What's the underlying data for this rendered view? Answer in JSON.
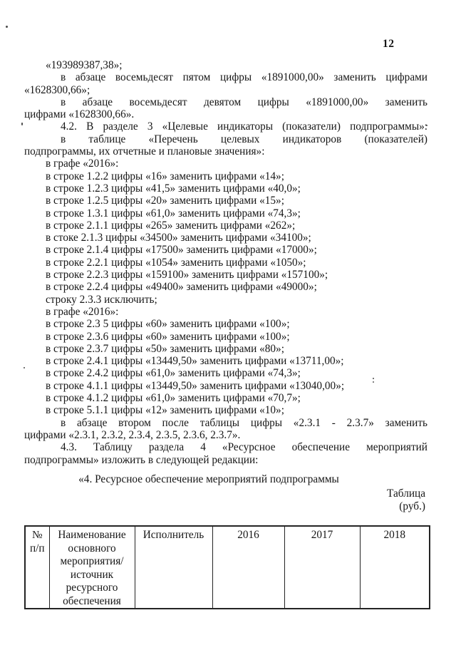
{
  "page": {
    "number": "12"
  },
  "document": {
    "lines": [
      {
        "style": "i",
        "text": "«193989387,38»;"
      },
      {
        "style": "pj",
        "text": "в абзаце восемьдесят пятом цифры «1891000,00» заменить цифрами"
      },
      {
        "style": "m",
        "text": "«1628300,66»;"
      },
      {
        "style": "pj",
        "text": "в абзаце восемьдесят девятом цифры «1891000,00» заменить"
      },
      {
        "style": "m",
        "text": "цифрами «1628300,66»."
      },
      {
        "style": "pj",
        "text": "4.2. В разделе 3 «Целевые индикаторы (показатели) подпрограммы»:"
      },
      {
        "style": "pj",
        "text": "в таблице «Перечень целевых индикаторов (показателей)"
      },
      {
        "style": "m",
        "text": "подпрограммы, их отчетные и плановые значения»:"
      },
      {
        "style": "i",
        "text": "в графе «2016»:"
      },
      {
        "style": "i",
        "text": "в строке 1.2.2 цифры «16» заменить цифрами «14»;"
      },
      {
        "style": "i",
        "text": "в строке 1.2.3 цифры «41,5» заменить цифрами «40,0»;"
      },
      {
        "style": "i",
        "text": "в строке 1.2.5 цифры «20» заменить цифрами «15»;"
      },
      {
        "style": "i",
        "text": "в строке 1.3.1 цифры «61,0» заменить цифрами «74,3»;"
      },
      {
        "style": "i",
        "text": "в строке 2.1.1 цифры «265» заменить цифрами «262»;"
      },
      {
        "style": "i",
        "text": "в стоке 2.1.3 цифры «34500» заменить цифрами «34100»;"
      },
      {
        "style": "i",
        "text": "в строке 2.1.4 цифры «17500» заменить цифрами «17000»;"
      },
      {
        "style": "i",
        "text": "в строке 2.2.1 цифры «1054» заменить цифрами «1050»;"
      },
      {
        "style": "i",
        "text": "в строке 2.2.3 цифры «159100» заменить цифрами «157100»;"
      },
      {
        "style": "i",
        "text": "в строке 2.2.4 цифры «49400» заменить цифрами «49000»;"
      },
      {
        "style": "i",
        "text": "строку 2.3.3 исключить;"
      },
      {
        "style": "i",
        "text": "в графе «2016»:"
      },
      {
        "style": "i",
        "text": "в строке 2.3 5 цифры «60» заменить цифрами «100»;"
      },
      {
        "style": "i",
        "text": "в строке 2.3.6 цифры «60» заменить цифрами «100»;"
      },
      {
        "style": "i",
        "text": "в строке 2.3.7 цифры «50» заменить цифрами «80»;"
      },
      {
        "style": "i",
        "text": "в строке 2.4.1 цифры «13449,50» заменить цифрами «13711,00»;"
      },
      {
        "style": "i",
        "text": "в строке 2.4.2 цифры «61,0» заменить цифрами «74,3»;"
      },
      {
        "style": "i",
        "text": "в строке 4.1.1 цифры «13449,50» заменить цифрами «13040,00»;"
      },
      {
        "style": "i",
        "text": "в строке 4.1.2 цифры «61,0» заменить цифрами «70,7»;"
      },
      {
        "style": "i",
        "text": "в строке 5.1.1 цифры «12» заменить цифрами «10»;"
      },
      {
        "style": "pj",
        "text": "в абзаце втором после таблицы цифры «2.3.1 - 2.3.7» заменить"
      },
      {
        "style": "m",
        "text": "цифрами «2.3.1, 2.3.2, 2.3.4, 2.3.5, 2.3.6, 2.3.7»."
      },
      {
        "style": "pj",
        "text": "4.3. Таблицу раздела 4 «Ресурсное обеспечение мероприятий"
      },
      {
        "style": "m",
        "text": "подпрограммы» изложить в следующей редакции:"
      }
    ],
    "caption": "«4. Ресурсное обеспечение мероприятий подпрограммы",
    "table_word": "Таблица",
    "table_unit": "(руб.)"
  },
  "table": {
    "columns": [
      {
        "header": "№ п/п"
      },
      {
        "header": "Наименование основного мероприятия/ источник ресурсного обеспечения"
      },
      {
        "header": "Исполнитель"
      },
      {
        "header": "2016"
      },
      {
        "header": "2017"
      },
      {
        "header": "2018"
      }
    ]
  }
}
